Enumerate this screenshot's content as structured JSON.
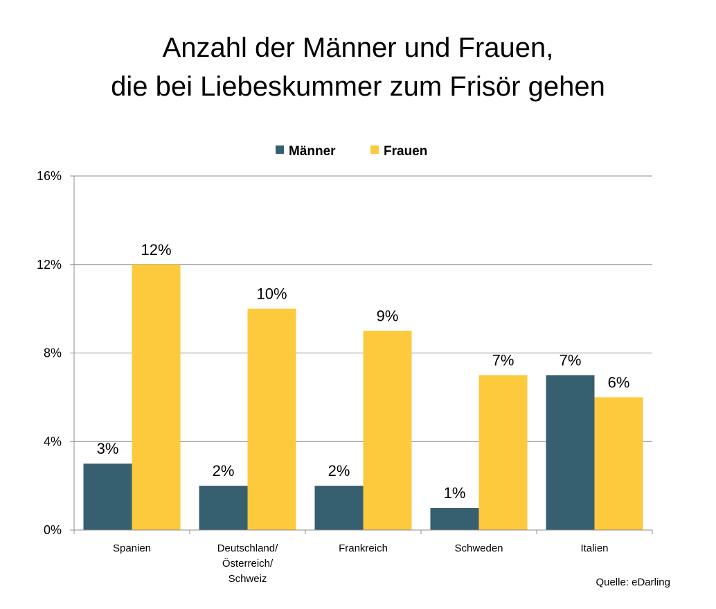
{
  "chart_data": {
    "type": "bar",
    "title_lines": [
      "Anzahl der Männer und Frauen,",
      "die bei Liebeskummer zum Frisör gehen"
    ],
    "categories": [
      [
        "Spanien"
      ],
      [
        "Deutschland/",
        "Österreich/",
        "Schweiz"
      ],
      [
        "Frankreich"
      ],
      [
        "Schweden"
      ],
      [
        "Italien"
      ]
    ],
    "series": [
      {
        "name": "Männer",
        "color": "#365f70",
        "values": [
          3,
          2,
          2,
          1,
          7
        ],
        "labels": [
          "3%",
          "2%",
          "2%",
          "1%",
          "7%"
        ]
      },
      {
        "name": "Frauen",
        "color": "#fdc93d",
        "values": [
          12,
          10,
          9,
          7,
          6
        ],
        "labels": [
          "12%",
          "10%",
          "9%",
          "7%",
          "6%"
        ]
      }
    ],
    "yticks": [
      0,
      4,
      8,
      12,
      16
    ],
    "ytick_labels": [
      "0%",
      "4%",
      "8%",
      "12%",
      "16%"
    ],
    "ylim": [
      0,
      16
    ],
    "grid": true,
    "legend_position": "top-center",
    "source": "Quelle: eDarling"
  }
}
